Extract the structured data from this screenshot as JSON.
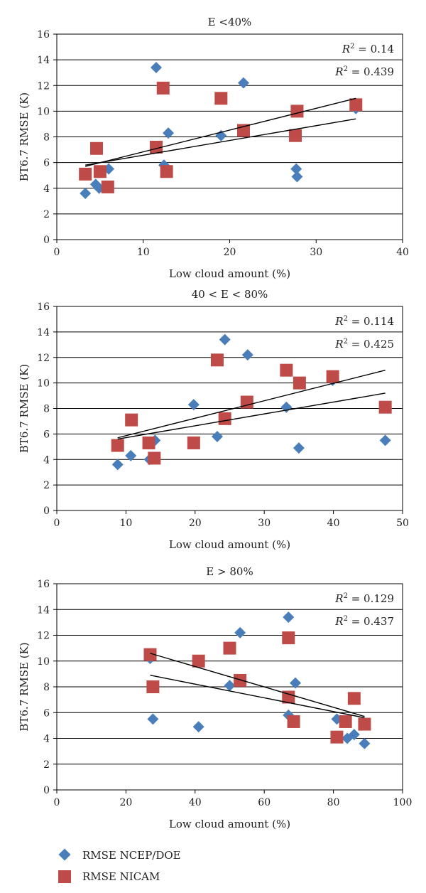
{
  "colors": {
    "ncep": "#4a7ebb",
    "nicam": "#be4b48",
    "grid": "#000000",
    "trend": "#000000"
  },
  "legend": {
    "ncep": "RMSE NCEP/DOE",
    "nicam": "RMSE NICAM"
  },
  "chart_data": [
    {
      "type": "scatter",
      "title": "E <40%",
      "xlabel": "Low cloud amount (%)",
      "ylabel": "BT6.7 RMSE (K)",
      "xlim": [
        0,
        40
      ],
      "ylim": [
        0,
        16
      ],
      "xticks": [
        0,
        10,
        20,
        30,
        40
      ],
      "yticks": [
        0,
        2,
        4,
        6,
        8,
        10,
        12,
        14,
        16
      ],
      "grid": "horizontal",
      "r2": [
        "0.14",
        "0.439"
      ],
      "series": [
        {
          "key": "ncep",
          "name": "RMSE NCEP/DOE",
          "points": [
            [
              3.3,
              3.6
            ],
            [
              4.5,
              4.3
            ],
            [
              4.9,
              4.0
            ],
            [
              6.0,
              5.5
            ],
            [
              11.5,
              13.4
            ],
            [
              12.4,
              5.8
            ],
            [
              12.9,
              8.3
            ],
            [
              19.0,
              8.1
            ],
            [
              21.6,
              12.2
            ],
            [
              27.7,
              5.5
            ],
            [
              27.8,
              4.9
            ],
            [
              34.6,
              10.2
            ]
          ]
        },
        {
          "key": "nicam",
          "name": "RMSE NICAM",
          "points": [
            [
              3.3,
              5.1
            ],
            [
              4.6,
              7.1
            ],
            [
              5.0,
              5.3
            ],
            [
              5.9,
              4.1
            ],
            [
              11.5,
              7.2
            ],
            [
              12.3,
              11.8
            ],
            [
              12.7,
              5.3
            ],
            [
              19.0,
              11.0
            ],
            [
              21.6,
              8.5
            ],
            [
              27.6,
              8.1
            ],
            [
              27.8,
              10.0
            ],
            [
              34.6,
              10.5
            ]
          ]
        }
      ],
      "trendlines": [
        [
          [
            3.3,
            5.8
          ],
          [
            34.6,
            9.4
          ]
        ],
        [
          [
            3.3,
            5.7
          ],
          [
            34.6,
            11.0
          ]
        ]
      ]
    },
    {
      "type": "scatter",
      "title": "40 < E < 80%",
      "xlabel": "Low cloud amount (%)",
      "ylabel": "BT6.7 RMSE (K)",
      "xlim": [
        0,
        50
      ],
      "ylim": [
        0,
        16
      ],
      "xticks": [
        0,
        10,
        20,
        30,
        40,
        50
      ],
      "yticks": [
        0,
        2,
        4,
        6,
        8,
        10,
        12,
        14,
        16
      ],
      "grid": "horizontal",
      "r2": [
        "0.114",
        "0.425"
      ],
      "series": [
        {
          "key": "ncep",
          "name": "RMSE NCEP/DOE",
          "points": [
            [
              8.8,
              3.6
            ],
            [
              10.7,
              4.3
            ],
            [
              13.4,
              4.0
            ],
            [
              14.2,
              5.5
            ],
            [
              19.8,
              8.3
            ],
            [
              23.2,
              5.8
            ],
            [
              24.3,
              13.4
            ],
            [
              27.6,
              12.2
            ],
            [
              33.2,
              8.1
            ],
            [
              35.0,
              4.9
            ],
            [
              39.9,
              10.2
            ],
            [
              47.5,
              5.5
            ]
          ]
        },
        {
          "key": "nicam",
          "name": "RMSE NICAM",
          "points": [
            [
              8.8,
              5.1
            ],
            [
              10.8,
              7.1
            ],
            [
              13.3,
              5.3
            ],
            [
              14.1,
              4.1
            ],
            [
              19.8,
              5.3
            ],
            [
              23.2,
              11.8
            ],
            [
              24.3,
              7.2
            ],
            [
              27.5,
              8.5
            ],
            [
              33.2,
              11.0
            ],
            [
              35.1,
              10.0
            ],
            [
              39.9,
              10.5
            ],
            [
              47.5,
              8.1
            ]
          ]
        }
      ],
      "trendlines": [
        [
          [
            8.8,
            5.7
          ],
          [
            47.5,
            11.0
          ]
        ],
        [
          [
            8.8,
            5.6
          ],
          [
            47.5,
            9.2
          ]
        ]
      ]
    },
    {
      "type": "scatter",
      "title": "E > 80%",
      "xlabel": "Low cloud amount (%)",
      "ylabel": "BT6.7 RMSE (K)",
      "xlim": [
        0,
        100
      ],
      "ylim": [
        0,
        16
      ],
      "xticks": [
        0,
        20,
        40,
        60,
        80,
        100
      ],
      "yticks": [
        0,
        2,
        4,
        6,
        8,
        10,
        12,
        14,
        16
      ],
      "grid": "horizontal",
      "r2": [
        "0.129",
        "0.437"
      ],
      "series": [
        {
          "key": "ncep",
          "name": "RMSE NCEP/DOE",
          "points": [
            [
              27.0,
              10.2
            ],
            [
              27.8,
              5.5
            ],
            [
              41.0,
              4.9
            ],
            [
              50.0,
              8.1
            ],
            [
              53.0,
              12.2
            ],
            [
              67.0,
              13.4
            ],
            [
              67.0,
              5.8
            ],
            [
              69.0,
              8.3
            ],
            [
              81.0,
              5.5
            ],
            [
              84.0,
              4.0
            ],
            [
              86.0,
              4.3
            ],
            [
              89.0,
              3.6
            ]
          ]
        },
        {
          "key": "nicam",
          "name": "RMSE NICAM",
          "points": [
            [
              27.0,
              10.5
            ],
            [
              27.8,
              8.0
            ],
            [
              41.0,
              10.0
            ],
            [
              50.0,
              11.0
            ],
            [
              53.0,
              8.5
            ],
            [
              67.0,
              11.8
            ],
            [
              67.0,
              7.2
            ],
            [
              68.5,
              5.3
            ],
            [
              81.0,
              4.1
            ],
            [
              83.5,
              5.3
            ],
            [
              86.0,
              7.1
            ],
            [
              89.0,
              5.1
            ]
          ]
        }
      ],
      "trendlines": [
        [
          [
            27.0,
            10.6
          ],
          [
            89.0,
            5.7
          ]
        ],
        [
          [
            27.0,
            8.9
          ],
          [
            89.0,
            5.6
          ]
        ]
      ]
    }
  ]
}
